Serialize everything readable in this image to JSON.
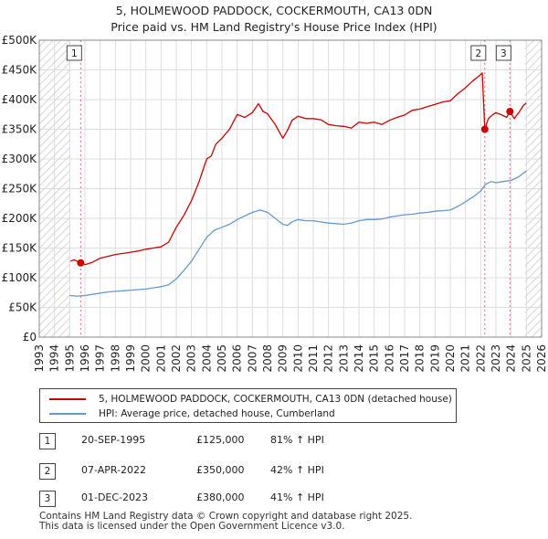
{
  "chart_data": {
    "type": "line",
    "title": "5, HOLMEWOOD PADDOCK, COCKERMOUTH, CA13 0DN",
    "subtitle": "Price paid vs. HM Land Registry's House Price Index (HPI)",
    "xlim": [
      1993,
      2026
    ],
    "ylim": [
      0,
      500000
    ],
    "x_ticks": [
      1993,
      1994,
      1995,
      1996,
      1997,
      1998,
      1999,
      2000,
      2001,
      2002,
      2003,
      2004,
      2005,
      2006,
      2007,
      2008,
      2009,
      2010,
      2011,
      2012,
      2013,
      2014,
      2015,
      2016,
      2017,
      2018,
      2019,
      2020,
      2021,
      2022,
      2023,
      2024,
      2025,
      2026
    ],
    "y_ticks": [
      {
        "value": 0,
        "label": "£0"
      },
      {
        "value": 50000,
        "label": "£50K"
      },
      {
        "value": 100000,
        "label": "£100K"
      },
      {
        "value": 150000,
        "label": "£150K"
      },
      {
        "value": 200000,
        "label": "£200K"
      },
      {
        "value": 250000,
        "label": "£250K"
      },
      {
        "value": 300000,
        "label": "£300K"
      },
      {
        "value": 350000,
        "label": "£350K"
      },
      {
        "value": 400000,
        "label": "£400K"
      },
      {
        "value": 450000,
        "label": "£450K"
      },
      {
        "value": 500000,
        "label": "£500K"
      }
    ],
    "hatched_ranges": [
      [
        1993,
        1995.05
      ],
      [
        2024.9,
        2026
      ]
    ],
    "series": [
      {
        "name": "5, HOLMEWOOD PADDOCK, COCKERMOUTH, CA13 0DN (detached house)",
        "color": "#cc0000",
        "x": [
          1995.05,
          1995.3,
          1995.72,
          1996.0,
          1996.5,
          1997.0,
          1997.5,
          1998.0,
          1998.5,
          1999.0,
          1999.5,
          2000.0,
          2000.5,
          2001.0,
          2001.5,
          2002.0,
          2002.5,
          2003.0,
          2003.5,
          2004.0,
          2004.3,
          2004.6,
          2005.0,
          2005.5,
          2006.0,
          2006.5,
          2007.0,
          2007.4,
          2007.7,
          2008.0,
          2008.5,
          2009.0,
          2009.3,
          2009.6,
          2010.0,
          2010.5,
          2011.0,
          2011.5,
          2012.0,
          2012.5,
          2013.0,
          2013.5,
          2014.0,
          2014.5,
          2015.0,
          2015.5,
          2016.0,
          2016.5,
          2017.0,
          2017.5,
          2018.0,
          2018.5,
          2019.0,
          2019.5,
          2020.0,
          2020.5,
          2021.0,
          2021.5,
          2021.9,
          2022.1,
          2022.27,
          2022.5,
          2022.8,
          2023.0,
          2023.4,
          2023.7,
          2023.92,
          2024.2,
          2024.5,
          2024.8,
          2025.0
        ],
        "y": [
          128000,
          130000,
          125000,
          122000,
          126000,
          133000,
          136000,
          139000,
          141000,
          143000,
          145000,
          148000,
          150000,
          152000,
          160000,
          185000,
          205000,
          230000,
          262000,
          300000,
          305000,
          325000,
          335000,
          350000,
          375000,
          370000,
          378000,
          393000,
          380000,
          376000,
          358000,
          335000,
          348000,
          365000,
          372000,
          368000,
          368000,
          366000,
          358000,
          356000,
          355000,
          352000,
          362000,
          360000,
          362000,
          358000,
          365000,
          370000,
          374000,
          382000,
          384000,
          388000,
          392000,
          396000,
          398000,
          410000,
          420000,
          432000,
          440000,
          445000,
          350000,
          368000,
          375000,
          378000,
          374000,
          370000,
          380000,
          368000,
          378000,
          390000,
          394000
        ]
      },
      {
        "name": "HPI: Average price, detached house, Cumberland",
        "color": "#6699cc",
        "x": [
          1995.0,
          1995.5,
          1996.0,
          1996.5,
          1997.0,
          1997.5,
          1998.0,
          1998.5,
          1999.0,
          1999.5,
          2000.0,
          2000.5,
          2001.0,
          2001.5,
          2002.0,
          2002.5,
          2003.0,
          2003.5,
          2004.0,
          2004.5,
          2005.0,
          2005.5,
          2006.0,
          2006.5,
          2007.0,
          2007.5,
          2008.0,
          2008.5,
          2009.0,
          2009.3,
          2009.6,
          2010.0,
          2010.5,
          2011.0,
          2011.5,
          2012.0,
          2012.5,
          2013.0,
          2013.5,
          2014.0,
          2014.5,
          2015.0,
          2015.5,
          2016.0,
          2016.5,
          2017.0,
          2017.5,
          2018.0,
          2018.5,
          2019.0,
          2019.5,
          2020.0,
          2020.5,
          2021.0,
          2021.5,
          2022.0,
          2022.3,
          2022.7,
          2023.0,
          2023.5,
          2024.0,
          2024.5,
          2025.0
        ],
        "y": [
          70000,
          69000,
          70000,
          72000,
          74000,
          76000,
          77000,
          78000,
          79000,
          80000,
          81000,
          83000,
          85000,
          88000,
          98000,
          112000,
          128000,
          148000,
          168000,
          180000,
          185000,
          190000,
          198000,
          204000,
          210000,
          214000,
          210000,
          200000,
          190000,
          188000,
          194000,
          198000,
          196000,
          196000,
          194000,
          192000,
          191000,
          190000,
          192000,
          196000,
          198000,
          198000,
          199000,
          202000,
          204000,
          206000,
          207000,
          209000,
          210000,
          212000,
          213000,
          214000,
          220000,
          228000,
          236000,
          246000,
          257000,
          262000,
          260000,
          262000,
          264000,
          270000,
          280000
        ]
      }
    ],
    "sales": [
      {
        "num": "1",
        "year": 1995.72,
        "value": 125000
      },
      {
        "num": "2",
        "year": 2022.27,
        "value": 350000
      },
      {
        "num": "3",
        "year": 2023.92,
        "value": 380000
      }
    ]
  },
  "legend": {
    "property_label": "5, HOLMEWOOD PADDOCK, COCKERMOUTH, CA13 0DN (detached house)",
    "hpi_label": "HPI: Average price, detached house, Cumberland"
  },
  "transactions": [
    {
      "num": "1",
      "date": "20-SEP-1995",
      "price": "£125,000",
      "hpi": "81% ↑ HPI"
    },
    {
      "num": "2",
      "date": "07-APR-2022",
      "price": "£350,000",
      "hpi": "42% ↑ HPI"
    },
    {
      "num": "3",
      "date": "01-DEC-2023",
      "price": "£380,000",
      "hpi": "41% ↑ HPI"
    }
  ],
  "footer": {
    "line1": "Contains HM Land Registry data © Crown copyright and database right 2025.",
    "line2": "This data is licensed under the Open Government Licence v3.0."
  },
  "colors": {
    "property": "#cc0000",
    "hpi": "#6699cc",
    "marker_line": "#e06666"
  }
}
